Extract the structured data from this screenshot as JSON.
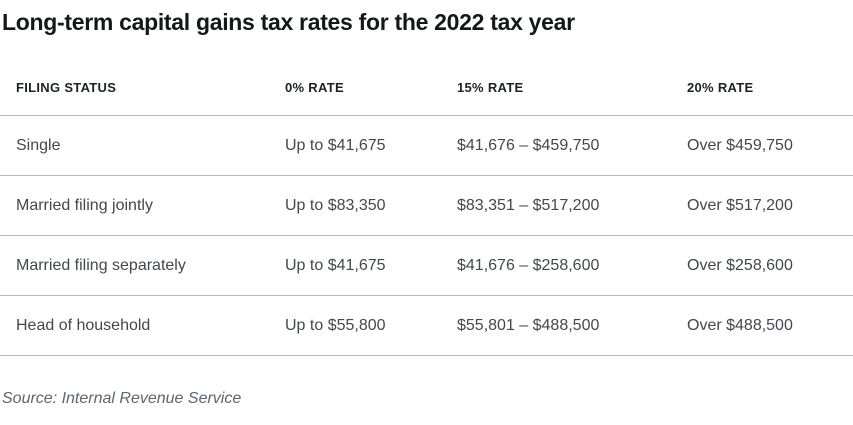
{
  "title": "Long-term capital gains tax rates for the 2022 tax year",
  "source": "Source: Internal Revenue Service",
  "chart_data": {
    "type": "table",
    "title": "Long-term capital gains tax rates for the 2022 tax year",
    "columns": [
      "FILING STATUS",
      "0% RATE",
      "15% RATE",
      "20% RATE"
    ],
    "rows": [
      [
        "Single",
        "Up to $41,675",
        "$41,676 – $459,750",
        "Over $459,750"
      ],
      [
        "Married filing jointly",
        "Up to $83,350",
        "$83,351 – $517,200",
        "Over $517,200"
      ],
      [
        "Married filing separately",
        "Up to $41,675",
        "$41,676 – $258,600",
        "Over $258,600"
      ],
      [
        "Head of household",
        "Up to $55,800",
        "$55,801 – $488,500",
        "Over $488,500"
      ]
    ],
    "source": "Source: Internal Revenue Service",
    "layout_hints": {
      "header_row": true,
      "row_dividers": true,
      "grid": "horizontal-only"
    }
  },
  "colors": {
    "background": "#ffffff",
    "title_text": "#15181b",
    "header_text": "#1d2125",
    "body_text": "#43484e",
    "divider": "#b3bac4",
    "source_text": "#5d6570"
  }
}
